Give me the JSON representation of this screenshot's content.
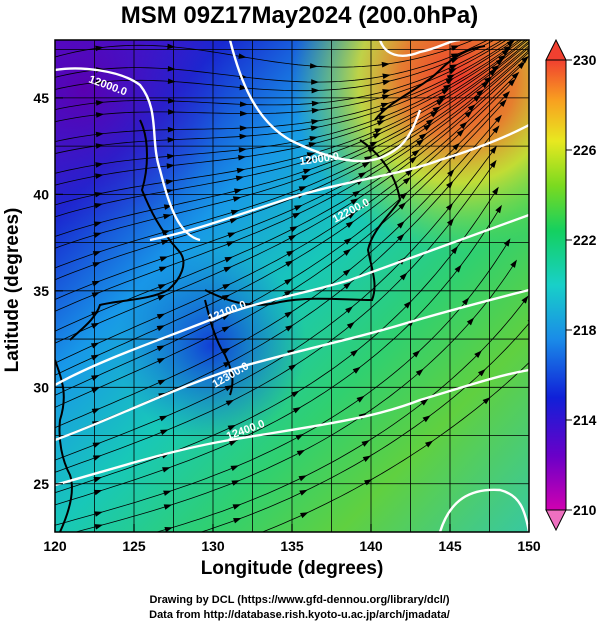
{
  "title": "MSM 09Z17May2024 (200.0hPa)",
  "axes": {
    "xlabel": "Longitude (degrees)",
    "ylabel": "Latitude  (degrees)",
    "x_ticks": [
      "120",
      "125",
      "130",
      "135",
      "140",
      "145",
      "150"
    ],
    "y_ticks": [
      "25",
      "30",
      "35",
      "40",
      "45"
    ]
  },
  "colorbar": {
    "ticks": [
      "210",
      "214",
      "218",
      "222",
      "226",
      "230"
    ],
    "range": [
      210,
      230
    ],
    "colors": [
      "#d000b0",
      "#6a00c8",
      "#1020d8",
      "#1a8ce8",
      "#18d0c8",
      "#14d060",
      "#7ada20",
      "#e8e820",
      "#f8a020",
      "#f04030"
    ]
  },
  "contours": {
    "labels": [
      "12000.0",
      "12000.0",
      "12100.0",
      "12200.0",
      "12300.0",
      "12400.0"
    ]
  },
  "credits": {
    "line1": "Drawing by DCL (https://www.gfd-dennou.org/library/dcl/)",
    "line2": "Data from http://database.rish.kyoto-u.ac.jp/arch/jmadata/"
  }
}
